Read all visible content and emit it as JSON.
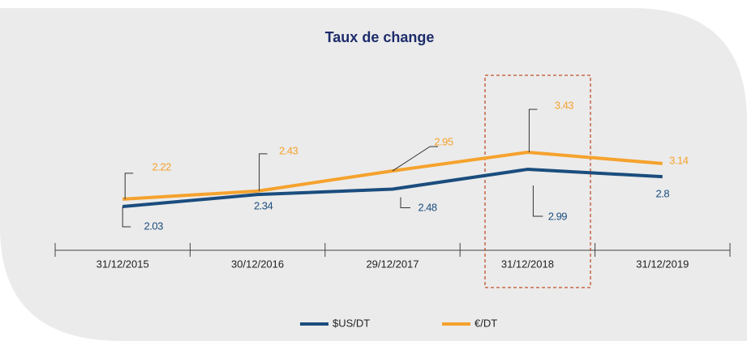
{
  "chart_data": {
    "type": "line",
    "title": "Taux de change",
    "categories": [
      "31/12/2015",
      "30/12/2016",
      "29/12/2017",
      "31/12/2018",
      "31/12/2019"
    ],
    "series": [
      {
        "name": "$US/DT",
        "color": "#1b4d7e",
        "values": [
          2.03,
          2.34,
          2.48,
          2.99,
          2.8
        ]
      },
      {
        "name": "€/DT",
        "color": "#f5a22d",
        "values": [
          2.22,
          2.43,
          2.95,
          3.43,
          3.14
        ]
      }
    ]
  }
}
